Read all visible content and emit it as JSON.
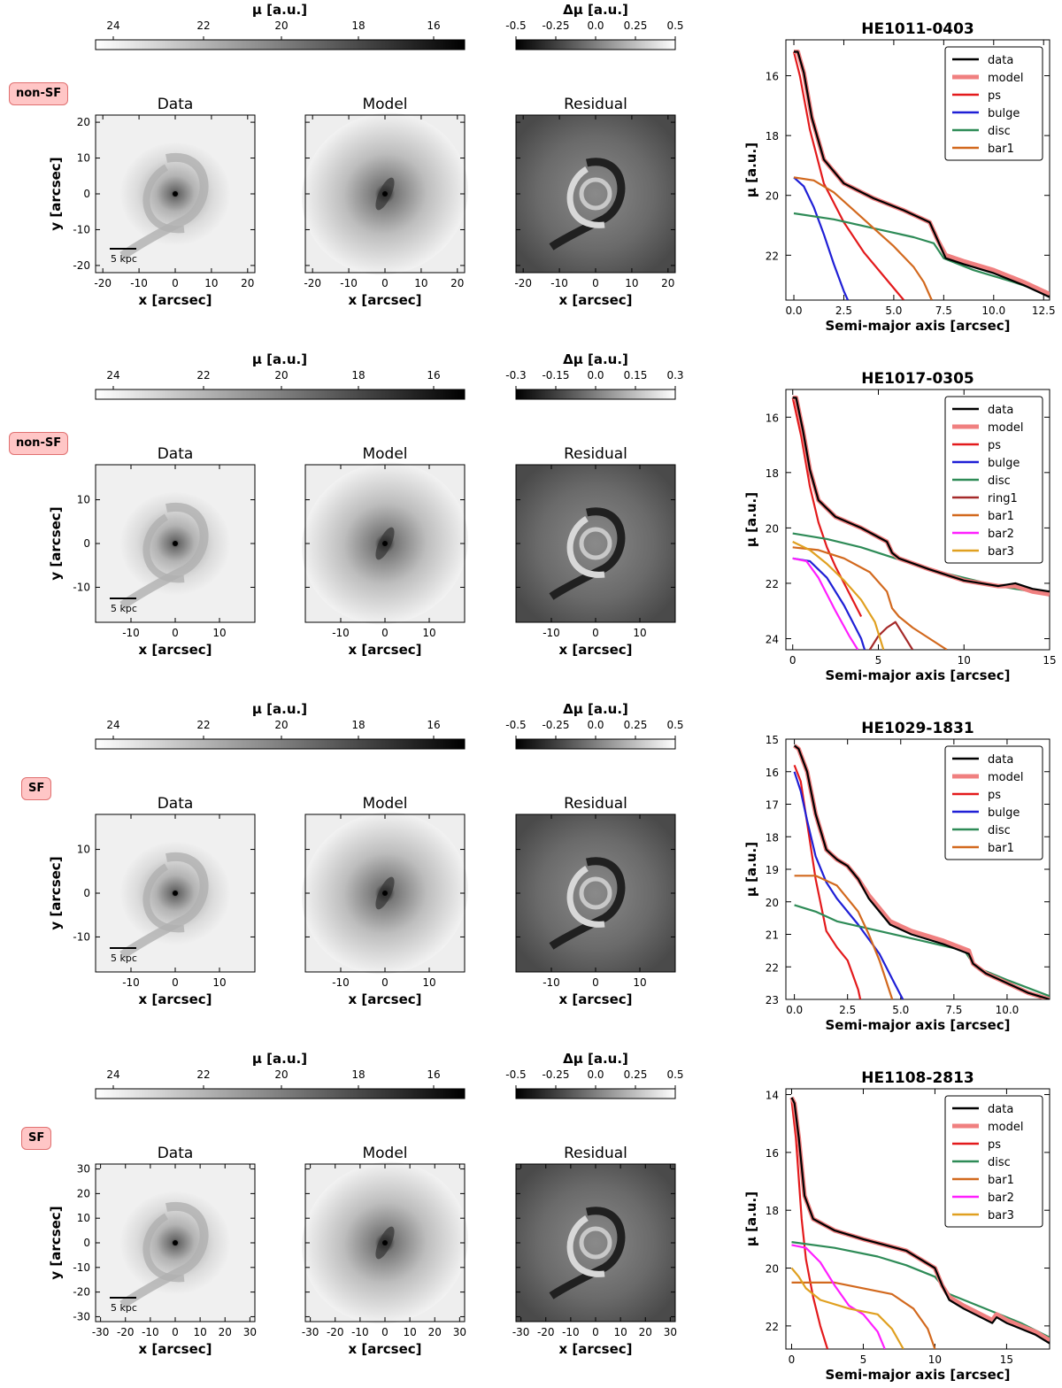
{
  "colorbars": {
    "mu_label": "μ [a.u.]",
    "dmu_label": "Δμ [a.u.]"
  },
  "panel_titles": {
    "data": "Data",
    "model": "Model",
    "residual": "Residual"
  },
  "axis_labels": {
    "x": "x [arcsec]",
    "y": "y [arcsec]",
    "sma": "Semi-major axis [arcsec]",
    "mu": "μ [a.u.]"
  },
  "colors": {
    "data": "#000000",
    "model": "#f08080",
    "ps": "#e31a1c",
    "bulge": "#1f1fd6",
    "disc": "#2e8b57",
    "ring1": "#a52a2a",
    "bar1": "#d2691e",
    "bar2": "#ff1fff",
    "bar3": "#e0a020"
  },
  "chart_data": [
    {
      "type": "line",
      "title": "HE1011-0403",
      "badge": "non-SF",
      "scale_bar": "5 kpc",
      "image_extent": 22,
      "image_ticks": [
        -20,
        -10,
        0,
        10,
        20
      ],
      "image_yticks": [
        -20,
        -10,
        0,
        10,
        20
      ],
      "mu_ticks": [
        "24",
        "22",
        "20",
        "18",
        "16"
      ],
      "dmu_ticks": [
        "-0.5",
        "-0.25",
        "0.0",
        "0.25",
        "0.5"
      ],
      "xlabel": "Semi-major axis [arcsec]",
      "ylabel": "μ [a.u.]",
      "xlim": [
        -0.4,
        12.8
      ],
      "ylim": [
        23.5,
        14.8
      ],
      "xticks": [
        "0.0",
        "2.5",
        "5.0",
        "7.5",
        "10.0",
        "12.5"
      ],
      "xtick_values": [
        0,
        2.5,
        5,
        7.5,
        10,
        12.5
      ],
      "yticks": [
        "16",
        "18",
        "20",
        "22"
      ],
      "ytick_values": [
        16,
        18,
        20,
        22
      ],
      "series": [
        {
          "name": "data",
          "x": [
            0,
            0.2,
            0.5,
            0.9,
            1.5,
            2.5,
            4,
            5.5,
            6.8,
            7.2,
            7.6,
            8.5,
            10,
            11.5,
            12.8
          ],
          "y": [
            15.2,
            15.2,
            15.9,
            17.4,
            18.8,
            19.6,
            20.1,
            20.5,
            20.9,
            21.5,
            22.1,
            22.3,
            22.6,
            23.0,
            23.4
          ]
        },
        {
          "name": "model",
          "x": [
            0,
            0.2,
            0.5,
            0.9,
            1.5,
            2.5,
            4,
            5.5,
            6.8,
            7.2,
            7.6,
            8.5,
            10,
            11.5,
            12.8
          ],
          "y": [
            15.2,
            15.2,
            15.9,
            17.4,
            18.8,
            19.6,
            20.1,
            20.5,
            20.9,
            21.5,
            22.0,
            22.2,
            22.5,
            22.9,
            23.3
          ]
        },
        {
          "name": "ps",
          "x": [
            0,
            0.3,
            0.8,
            1.5,
            2.5,
            3.5,
            4.5,
            5.5
          ],
          "y": [
            15.2,
            16.0,
            17.8,
            19.6,
            20.9,
            21.9,
            22.7,
            23.5
          ]
        },
        {
          "name": "bulge",
          "x": [
            0,
            0.5,
            1,
            1.5,
            2,
            2.5,
            2.7
          ],
          "y": [
            19.4,
            19.7,
            20.4,
            21.3,
            22.3,
            23.2,
            23.5
          ]
        },
        {
          "name": "disc",
          "x": [
            0,
            2,
            4,
            6,
            7,
            7.5,
            9,
            11,
            12.8
          ],
          "y": [
            20.6,
            20.8,
            21.1,
            21.4,
            21.6,
            22.1,
            22.5,
            22.9,
            23.3
          ]
        },
        {
          "name": "bar1",
          "x": [
            0,
            1,
            2,
            3,
            4,
            5,
            6,
            6.5,
            6.9
          ],
          "y": [
            19.4,
            19.5,
            19.9,
            20.5,
            21.1,
            21.7,
            22.4,
            22.9,
            23.5
          ]
        }
      ]
    },
    {
      "type": "line",
      "title": "HE1017-0305",
      "badge": "non-SF",
      "scale_bar": "5 kpc",
      "image_extent": 18,
      "image_ticks": [
        -10,
        0,
        10
      ],
      "image_yticks": [
        -10,
        0,
        10
      ],
      "mu_ticks": [
        "24",
        "22",
        "20",
        "18",
        "16"
      ],
      "dmu_ticks": [
        "-0.3",
        "-0.15",
        "0.0",
        "0.15",
        "0.3"
      ],
      "xlabel": "Semi-major axis [arcsec]",
      "ylabel": "μ [a.u.]",
      "xlim": [
        -0.4,
        15
      ],
      "ylim": [
        24.4,
        15.0
      ],
      "xticks": [
        "0",
        "5",
        "10",
        "15"
      ],
      "xtick_values": [
        0,
        5,
        10,
        15
      ],
      "yticks": [
        "16",
        "18",
        "20",
        "22",
        "24"
      ],
      "ytick_values": [
        16,
        18,
        20,
        22,
        24
      ],
      "series": [
        {
          "name": "data",
          "x": [
            0,
            0.2,
            0.6,
            1,
            1.5,
            2.5,
            4,
            5.5,
            5.8,
            6.2,
            8,
            10,
            11,
            12,
            13,
            14,
            15
          ],
          "y": [
            15.3,
            15.3,
            16.5,
            17.9,
            19.0,
            19.6,
            20.0,
            20.5,
            20.9,
            21.1,
            21.5,
            21.9,
            22.0,
            22.1,
            22.0,
            22.2,
            22.3
          ]
        },
        {
          "name": "model",
          "x": [
            0,
            0.2,
            0.6,
            1,
            1.5,
            2.5,
            4,
            5.5,
            5.8,
            6.2,
            8,
            10,
            11,
            12,
            13,
            14,
            15
          ],
          "y": [
            15.3,
            15.3,
            16.5,
            17.9,
            19.0,
            19.6,
            20.0,
            20.5,
            20.9,
            21.1,
            21.5,
            21.9,
            22.0,
            22.1,
            22.1,
            22.3,
            22.4
          ]
        },
        {
          "name": "ps",
          "x": [
            0,
            0.5,
            1,
            1.5,
            2,
            2.5,
            3,
            3.5,
            4
          ],
          "y": [
            15.3,
            16.7,
            18.5,
            19.8,
            20.7,
            21.4,
            22.0,
            22.6,
            23.2
          ]
        },
        {
          "name": "bulge",
          "x": [
            0,
            1,
            2,
            3,
            3.5,
            4,
            4.2
          ],
          "y": [
            21.1,
            21.2,
            21.8,
            22.8,
            23.4,
            24.0,
            24.4
          ]
        },
        {
          "name": "disc",
          "x": [
            0,
            2,
            4,
            6,
            8,
            10,
            12,
            15
          ],
          "y": [
            20.2,
            20.4,
            20.7,
            21.1,
            21.5,
            21.8,
            22.1,
            22.4
          ]
        },
        {
          "name": "ring1",
          "x": [
            4.5,
            5,
            5.5,
            6,
            6.4,
            6.8,
            7
          ],
          "y": [
            24.4,
            23.9,
            23.6,
            23.4,
            23.8,
            24.2,
            24.4
          ]
        },
        {
          "name": "bar1",
          "x": [
            0,
            1.5,
            3,
            4.5,
            5.5,
            5.8,
            6.2,
            7,
            8,
            9
          ],
          "y": [
            20.7,
            20.8,
            21.1,
            21.6,
            22.3,
            22.9,
            23.2,
            23.6,
            24.0,
            24.4
          ]
        },
        {
          "name": "bar2",
          "x": [
            0,
            0.8,
            1.5,
            2.5,
            3.3,
            3.8
          ],
          "y": [
            21.1,
            21.2,
            21.8,
            23.0,
            23.9,
            24.4
          ]
        },
        {
          "name": "bar3",
          "x": [
            0,
            1,
            2,
            3,
            4,
            4.8,
            5.3
          ],
          "y": [
            20.5,
            20.8,
            21.3,
            21.9,
            22.6,
            23.4,
            24.4
          ]
        }
      ]
    },
    {
      "type": "line",
      "title": "HE1029-1831",
      "badge": "SF",
      "scale_bar": "5 kpc",
      "image_extent": 18,
      "image_ticks": [
        -10,
        0,
        10
      ],
      "image_yticks": [
        -10,
        0,
        10
      ],
      "mu_ticks": [
        "24",
        "22",
        "20",
        "18",
        "16"
      ],
      "dmu_ticks": [
        "-0.5",
        "-0.25",
        "0.0",
        "0.25",
        "0.5"
      ],
      "xlabel": "Semi-major axis [arcsec]",
      "ylabel": "μ [a.u.]",
      "xlim": [
        -0.4,
        12
      ],
      "ylim": [
        23,
        15.0
      ],
      "xticks": [
        "0.0",
        "2.5",
        "5.0",
        "7.5",
        "10.0"
      ],
      "xtick_values": [
        0,
        2.5,
        5,
        7.5,
        10
      ],
      "yticks": [
        "15",
        "16",
        "17",
        "18",
        "19",
        "20",
        "21",
        "22",
        "23"
      ],
      "ytick_values": [
        15,
        16,
        17,
        18,
        19,
        20,
        21,
        22,
        23
      ],
      "series": [
        {
          "name": "data",
          "x": [
            0,
            0.2,
            0.6,
            1,
            1.5,
            2,
            2.5,
            3,
            3.5,
            4.5,
            5.5,
            7,
            8.2,
            8.4,
            9,
            10,
            11,
            12
          ],
          "y": [
            15.2,
            15.3,
            16.0,
            17.3,
            18.4,
            18.7,
            18.9,
            19.3,
            19.9,
            20.7,
            21.0,
            21.3,
            21.6,
            21.9,
            22.2,
            22.5,
            22.8,
            23.0
          ]
        },
        {
          "name": "model",
          "x": [
            0,
            0.2,
            0.6,
            1,
            1.5,
            2,
            2.5,
            3,
            3.5,
            4.5,
            5.5,
            7,
            8.2,
            8.4,
            9,
            10,
            11,
            12
          ],
          "y": [
            15.2,
            15.3,
            16.0,
            17.3,
            18.4,
            18.7,
            18.9,
            19.3,
            19.8,
            20.6,
            20.9,
            21.2,
            21.5,
            21.9,
            22.2,
            22.5,
            22.8,
            23.0
          ]
        },
        {
          "name": "ps",
          "x": [
            0,
            0.3,
            0.7,
            1,
            1.5,
            2,
            2.5,
            3,
            3.1
          ],
          "y": [
            15.8,
            16.3,
            18.0,
            19.3,
            20.9,
            21.4,
            21.8,
            22.7,
            23.0
          ]
        },
        {
          "name": "bulge",
          "x": [
            0,
            0.3,
            0.6,
            1,
            1.5,
            2,
            3,
            4,
            4.7,
            5.1
          ],
          "y": [
            16.0,
            16.6,
            17.5,
            18.6,
            19.4,
            19.9,
            20.7,
            21.6,
            22.5,
            23.0
          ]
        },
        {
          "name": "disc",
          "x": [
            0,
            1,
            2,
            4,
            6,
            8,
            8.5,
            10,
            12
          ],
          "y": [
            20.1,
            20.3,
            20.6,
            20.9,
            21.2,
            21.5,
            22.0,
            22.4,
            22.9
          ]
        },
        {
          "name": "bar1",
          "x": [
            0,
            1,
            2,
            3,
            3.5,
            4,
            4.3,
            4.6
          ],
          "y": [
            19.2,
            19.2,
            19.5,
            20.3,
            21.0,
            21.8,
            22.4,
            23.0
          ]
        }
      ]
    },
    {
      "type": "line",
      "title": "HE1108-2813",
      "badge": "SF",
      "scale_bar": "5 kpc",
      "image_extent": 32,
      "image_ticks": [
        -30,
        -20,
        -10,
        0,
        10,
        20,
        30
      ],
      "image_yticks": [
        -30,
        -20,
        -10,
        0,
        10,
        20,
        30
      ],
      "mu_ticks": [
        "24",
        "22",
        "20",
        "18",
        "16"
      ],
      "dmu_ticks": [
        "-0.5",
        "-0.25",
        "0.0",
        "0.25",
        "0.5"
      ],
      "xlabel": "Semi-major axis [arcsec]",
      "ylabel": "μ [a.u.]",
      "xlim": [
        -0.4,
        18
      ],
      "ylim": [
        22.8,
        13.8
      ],
      "xticks": [
        "0",
        "5",
        "10",
        "15"
      ],
      "xtick_values": [
        0,
        5,
        10,
        15
      ],
      "yticks": [
        "14",
        "16",
        "18",
        "20",
        "22"
      ],
      "ytick_values": [
        14,
        16,
        18,
        20,
        22
      ],
      "series": [
        {
          "name": "data",
          "x": [
            0,
            0.2,
            0.5,
            0.9,
            1.5,
            3,
            5,
            8,
            10,
            10.5,
            11,
            12,
            14,
            14.3,
            15,
            16,
            17,
            18
          ],
          "y": [
            14.1,
            14.3,
            15.5,
            17.5,
            18.3,
            18.7,
            19.0,
            19.4,
            20.0,
            20.6,
            21.1,
            21.4,
            21.9,
            21.7,
            21.9,
            22.1,
            22.3,
            22.6
          ]
        },
        {
          "name": "model",
          "x": [
            0,
            0.2,
            0.5,
            0.9,
            1.5,
            3,
            5,
            8,
            10,
            10.5,
            11,
            12,
            14,
            14.3,
            15,
            16,
            17,
            18
          ],
          "y": [
            14.1,
            14.3,
            15.5,
            17.5,
            18.3,
            18.7,
            19.0,
            19.4,
            20.0,
            20.6,
            21.0,
            21.3,
            21.8,
            21.6,
            21.8,
            22.0,
            22.2,
            22.5
          ]
        },
        {
          "name": "ps",
          "x": [
            0,
            0.3,
            0.7,
            1,
            1.5,
            2,
            2.5
          ],
          "y": [
            14.2,
            15.5,
            18.3,
            19.7,
            21.0,
            22.0,
            22.8
          ]
        },
        {
          "name": "disc",
          "x": [
            0,
            3,
            6,
            8,
            10,
            11,
            14,
            16,
            18
          ],
          "y": [
            19.1,
            19.3,
            19.6,
            19.9,
            20.3,
            20.9,
            21.5,
            21.9,
            22.4
          ]
        },
        {
          "name": "bar1",
          "x": [
            0,
            3,
            5,
            7,
            8.5,
            9.5,
            10
          ],
          "y": [
            20.5,
            20.5,
            20.7,
            20.9,
            21.4,
            22.1,
            22.8
          ]
        },
        {
          "name": "bar2",
          "x": [
            0,
            1,
            2,
            3,
            4,
            5,
            6,
            6.5
          ],
          "y": [
            19.2,
            19.3,
            19.8,
            20.6,
            21.3,
            21.6,
            22.2,
            22.8
          ]
        },
        {
          "name": "bar3",
          "x": [
            0,
            0.5,
            1,
            2,
            4,
            6,
            7,
            7.8
          ],
          "y": [
            20.0,
            20.3,
            20.7,
            21.1,
            21.4,
            21.6,
            22.1,
            22.8
          ]
        }
      ]
    }
  ]
}
